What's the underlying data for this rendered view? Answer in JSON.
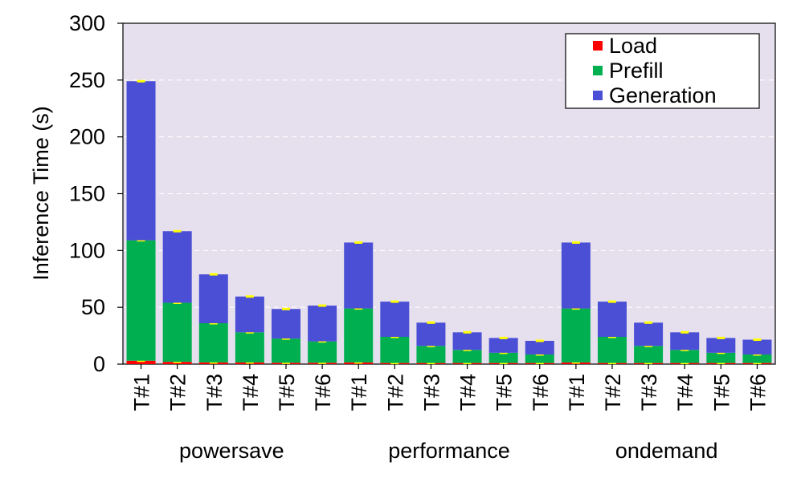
{
  "chart_data": {
    "type": "bar",
    "stacked": true,
    "ylabel": "Inference Time (s)",
    "ylim": [
      0,
      300
    ],
    "yticks": [
      0,
      50,
      100,
      150,
      200,
      250,
      300
    ],
    "grid": true,
    "legend_position": "top-right",
    "colors": {
      "plot_background": "#e6e0ee",
      "grid": "#ffffff",
      "error_marker": "#ffff00"
    },
    "groups": [
      "powersave",
      "performance",
      "ondemand"
    ],
    "categories": [
      "T#1",
      "T#2",
      "T#3",
      "T#4",
      "T#5",
      "T#6"
    ],
    "series": [
      {
        "name": "Load",
        "color": "#ff0000",
        "values": [
          [
            3,
            2,
            1.5,
            1.5,
            1.2,
            1.2
          ],
          [
            1.5,
            1,
            1,
            1,
            1,
            1
          ],
          [
            1.5,
            1,
            1,
            1,
            1,
            1
          ]
        ]
      },
      {
        "name": "Prefill",
        "color": "#00b050",
        "values": [
          [
            106,
            52,
            34.5,
            26.5,
            21.3,
            18.8
          ],
          [
            47.5,
            23,
            15,
            11.5,
            9,
            7.5
          ],
          [
            47.5,
            23,
            15,
            11.5,
            9,
            7.5
          ]
        ]
      },
      {
        "name": "Generation",
        "color": "#4a4fd6",
        "values": [
          [
            140,
            63,
            43,
            31.5,
            26,
            31.5
          ],
          [
            58,
            31,
            20.5,
            15.5,
            13,
            12
          ],
          [
            58,
            31,
            20.5,
            15.5,
            13,
            13
          ]
        ]
      }
    ]
  }
}
